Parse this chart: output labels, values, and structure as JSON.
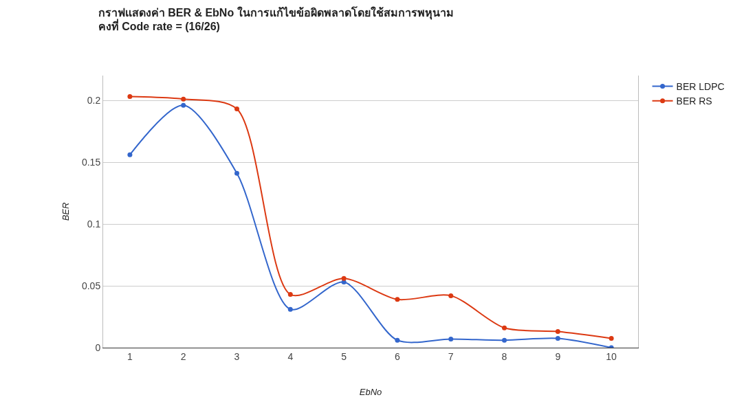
{
  "chart_data": {
    "type": "line",
    "title": "กราฟแสดงค่า BER & EbNo ในการแก้ไขข้อผิดพลาดโดยใช้สมการพหุนาม\nคงที่ Code rate = (16/26)",
    "xlabel": "EbNo",
    "ylabel": "BER",
    "categories": [
      "1",
      "2",
      "3",
      "4",
      "5",
      "6",
      "7",
      "8",
      "9",
      "10"
    ],
    "series": [
      {
        "name": "BER LDPC",
        "color": "#3366cc",
        "values": [
          0.156,
          0.196,
          0.141,
          0.031,
          0.053,
          0.006,
          0.007,
          0.006,
          0.0075,
          0
        ]
      },
      {
        "name": "BER RS",
        "color": "#dc3912",
        "values": [
          0.203,
          0.201,
          0.193,
          0.043,
          0.056,
          0.039,
          0.042,
          0.016,
          0.013,
          0.0075
        ]
      }
    ],
    "ylim": [
      0,
      0.22
    ],
    "yticks": [
      0,
      0.05,
      0.1,
      0.15,
      0.2
    ],
    "grid": "y",
    "legend": "top right",
    "marker": "circle",
    "line_style": "solid"
  }
}
